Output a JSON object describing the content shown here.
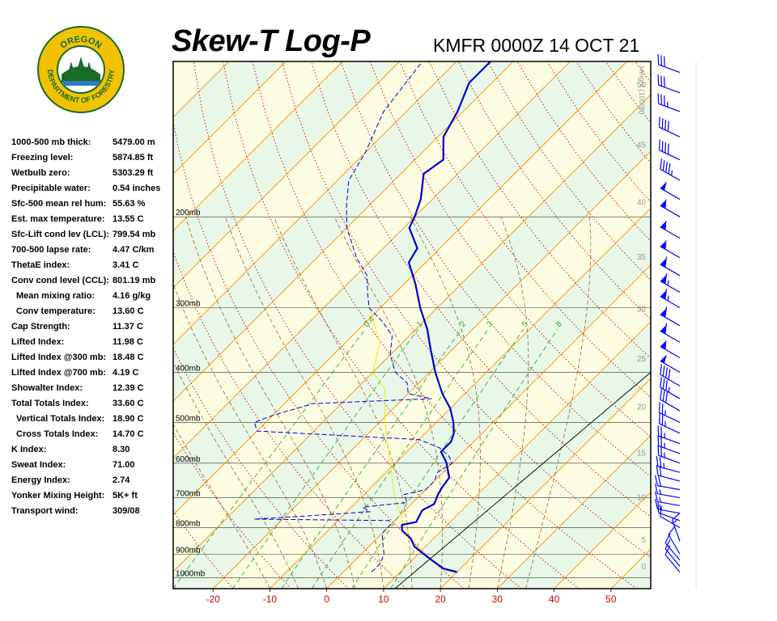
{
  "header": {
    "title": "Skew-T Log-P",
    "station_line": "KMFR 0000Z 14 OCT 21"
  },
  "logo": {
    "top_text": "OREGON",
    "bottom_text": "DEPARTMENT OF FORESTRY"
  },
  "indices": [
    {
      "label": "1000-500 mb thick:",
      "value": "5479.00 m"
    },
    {
      "label": "Freezing level:",
      "value": "5874.85 ft"
    },
    {
      "label": "Wetbulb zero:",
      "value": "5303.29 ft"
    },
    {
      "label": "Precipitable water:",
      "value": "0.54 inches"
    },
    {
      "label": "Sfc-500 mean rel hum:",
      "value": "55.63 %"
    },
    {
      "label": "Est. max temperature:",
      "value": "13.55 C"
    },
    {
      "label": "Sfc-Lift cond lev (LCL):",
      "value": "799.54 mb"
    },
    {
      "label": "700-500 lapse rate:",
      "value": "4.47 C/km"
    },
    {
      "label": "ThetaE index:",
      "value": "3.41 C"
    },
    {
      "label": "Conv cond level (CCL):",
      "value": "801.19 mb"
    },
    {
      "label": "Mean mixing ratio:",
      "value": "4.16 g/kg",
      "indent": true
    },
    {
      "label": "Conv temperature:",
      "value": "13.60 C",
      "indent": true
    },
    {
      "label": "Cap Strength:",
      "value": "11.37 C"
    },
    {
      "label": "Lifted Index:",
      "value": "11.98 C"
    },
    {
      "label": "Lifted Index @300 mb:",
      "value": "18.48 C"
    },
    {
      "label": "Lifted Index @700 mb:",
      "value": "4.19 C"
    },
    {
      "label": "Showalter Index:",
      "value": "12.39 C"
    },
    {
      "label": "Total Totals Index:",
      "value": "33.60 C"
    },
    {
      "label": "Vertical Totals Index:",
      "value": "18.90 C",
      "indent": true
    },
    {
      "label": "Cross Totals Index:",
      "value": "14.70 C",
      "indent": true
    },
    {
      "label": "K Index:",
      "value": "8.30"
    },
    {
      "label": "Sweat Index:",
      "value": "71.00"
    },
    {
      "label": "Energy Index:",
      "value": "2.74"
    },
    {
      "label": "Yonker Mixing Height:",
      "value": "5K+ ft"
    },
    {
      "label": "Transport wind:",
      "value": "309/08"
    }
  ],
  "colors": {
    "temperature": "#0000cc",
    "dewpoint": "#0000cc",
    "parcel": "#e6e600",
    "isotherm": "#ff8c00",
    "dry_adiabat": "#cc0000",
    "moist_adiabat": "#996633",
    "mixing_ratio": "#33aa33",
    "band_green": "#e8f7e8",
    "band_yellow": "#fcfce2",
    "x_tick_label": "#cc0000",
    "height_label": "#999999"
  },
  "chart_data": {
    "type": "line",
    "title": "Skew-T Log-P",
    "xlim": [
      -27,
      57
    ],
    "ylim": [
      1050,
      100
    ],
    "x_ticks": [
      -20,
      -10,
      0,
      10,
      20,
      30,
      40,
      50
    ],
    "pressure_levels": [
      200,
      300,
      400,
      500,
      600,
      700,
      800,
      900,
      1000
    ],
    "pressure_label_suffix": "mb",
    "height_axis_label": "Height (1000ft)",
    "height_ticks": [
      0,
      5,
      10,
      15,
      20,
      25,
      30,
      35,
      40,
      45,
      50
    ],
    "mixing_ratio_labels": [
      "0.4",
      "1",
      "2",
      "3",
      "5",
      "8"
    ],
    "mixing_ratio_values": [
      0.4,
      1,
      2,
      3,
      5,
      8
    ],
    "reference_line": [
      {
        "p": 1050,
        "t": 12
      },
      {
        "p": 260,
        "t": 22
      }
    ],
    "temperature": [
      {
        "p": 975,
        "t": 20
      },
      {
        "p": 960,
        "t": 17
      },
      {
        "p": 930,
        "t": 14
      },
      {
        "p": 900,
        "t": 11
      },
      {
        "p": 870,
        "t": 8
      },
      {
        "p": 840,
        "t": 6
      },
      {
        "p": 810,
        "t": 3
      },
      {
        "p": 790,
        "t": 2
      },
      {
        "p": 780,
        "t": 4
      },
      {
        "p": 740,
        "t": 3
      },
      {
        "p": 720,
        "t": 4
      },
      {
        "p": 690,
        "t": 3
      },
      {
        "p": 670,
        "t": 2.5
      },
      {
        "p": 640,
        "t": 2
      },
      {
        "p": 600,
        "t": -1
      },
      {
        "p": 570,
        "t": -4
      },
      {
        "p": 545,
        "t": -4
      },
      {
        "p": 525,
        "t": -5
      },
      {
        "p": 500,
        "t": -7
      },
      {
        "p": 470,
        "t": -10
      },
      {
        "p": 440,
        "t": -14
      },
      {
        "p": 400,
        "t": -19
      },
      {
        "p": 360,
        "t": -24
      },
      {
        "p": 330,
        "t": -28
      },
      {
        "p": 300,
        "t": -33
      },
      {
        "p": 270,
        "t": -38
      },
      {
        "p": 245,
        "t": -43
      },
      {
        "p": 230,
        "t": -44
      },
      {
        "p": 210,
        "t": -49
      },
      {
        "p": 200,
        "t": -50
      },
      {
        "p": 185,
        "t": -52
      },
      {
        "p": 165,
        "t": -56
      },
      {
        "p": 155,
        "t": -55
      },
      {
        "p": 140,
        "t": -59
      },
      {
        "p": 125,
        "t": -61
      },
      {
        "p": 110,
        "t": -64
      },
      {
        "p": 100,
        "t": -64
      }
    ],
    "dewpoint": [
      {
        "p": 975,
        "t": 5
      },
      {
        "p": 940,
        "t": 5
      },
      {
        "p": 900,
        "t": 4
      },
      {
        "p": 860,
        "t": 2
      },
      {
        "p": 820,
        "t": 0
      },
      {
        "p": 790,
        "t": 0
      },
      {
        "p": 775,
        "t": -1
      },
      {
        "p": 770,
        "t": -25
      },
      {
        "p": 760,
        "t": -17
      },
      {
        "p": 745,
        "t": -6
      },
      {
        "p": 730,
        "t": -8
      },
      {
        "p": 715,
        "t": -1
      },
      {
        "p": 690,
        "t": -3
      },
      {
        "p": 675,
        "t": 0
      },
      {
        "p": 650,
        "t": 0
      },
      {
        "p": 625,
        "t": -1
      },
      {
        "p": 600,
        "t": 0
      },
      {
        "p": 580,
        "t": -2
      },
      {
        "p": 560,
        "t": -5
      },
      {
        "p": 540,
        "t": -10
      },
      {
        "p": 520,
        "t": -40
      },
      {
        "p": 500,
        "t": -42
      },
      {
        "p": 485,
        "t": -40
      },
      {
        "p": 460,
        "t": -35
      },
      {
        "p": 450,
        "t": -15
      },
      {
        "p": 440,
        "t": -20
      },
      {
        "p": 420,
        "t": -22
      },
      {
        "p": 400,
        "t": -26
      },
      {
        "p": 370,
        "t": -30
      },
      {
        "p": 340,
        "t": -33
      },
      {
        "p": 320,
        "t": -37
      },
      {
        "p": 300,
        "t": -42
      },
      {
        "p": 280,
        "t": -45
      },
      {
        "p": 260,
        "t": -48
      },
      {
        "p": 240,
        "t": -53
      },
      {
        "p": 210,
        "t": -60
      },
      {
        "p": 190,
        "t": -64
      },
      {
        "p": 170,
        "t": -68
      },
      {
        "p": 150,
        "t": -70
      },
      {
        "p": 125,
        "t": -74
      },
      {
        "p": 100,
        "t": -76
      }
    ],
    "parcel": [
      {
        "p": 900,
        "t": 11
      },
      {
        "p": 840,
        "t": 6
      },
      {
        "p": 800,
        "t": 3
      },
      {
        "p": 770,
        "t": 1
      },
      {
        "p": 700,
        "t": -4
      },
      {
        "p": 600,
        "t": -11
      },
      {
        "p": 500,
        "t": -19
      },
      {
        "p": 430,
        "t": -25
      },
      {
        "p": 400,
        "t": -30
      },
      {
        "p": 350,
        "t": -34
      },
      {
        "p": 300,
        "t": -42
      }
    ],
    "winds": [
      {
        "p": 975,
        "dir": 320,
        "spd": 10
      },
      {
        "p": 950,
        "dir": 320,
        "spd": 10
      },
      {
        "p": 925,
        "dir": 320,
        "spd": 10
      },
      {
        "p": 900,
        "dir": 330,
        "spd": 10
      },
      {
        "p": 850,
        "dir": 340,
        "spd": 15
      },
      {
        "p": 800,
        "dir": 300,
        "spd": 10
      },
      {
        "p": 775,
        "dir": 290,
        "spd": 10
      },
      {
        "p": 750,
        "dir": 280,
        "spd": 15
      },
      {
        "p": 725,
        "dir": 280,
        "spd": 15
      },
      {
        "p": 700,
        "dir": 280,
        "spd": 15
      },
      {
        "p": 675,
        "dir": 280,
        "spd": 20
      },
      {
        "p": 650,
        "dir": 285,
        "spd": 20
      },
      {
        "p": 625,
        "dir": 285,
        "spd": 25
      },
      {
        "p": 600,
        "dir": 290,
        "spd": 25
      },
      {
        "p": 575,
        "dir": 290,
        "spd": 25
      },
      {
        "p": 550,
        "dir": 290,
        "spd": 25
      },
      {
        "p": 525,
        "dir": 295,
        "spd": 25
      },
      {
        "p": 500,
        "dir": 295,
        "spd": 25
      },
      {
        "p": 475,
        "dir": 300,
        "spd": 30
      },
      {
        "p": 450,
        "dir": 300,
        "spd": 35
      },
      {
        "p": 425,
        "dir": 300,
        "spd": 40
      },
      {
        "p": 400,
        "dir": 300,
        "spd": 50
      },
      {
        "p": 375,
        "dir": 300,
        "spd": 55
      },
      {
        "p": 350,
        "dir": 300,
        "spd": 60
      },
      {
        "p": 325,
        "dir": 300,
        "spd": 60
      },
      {
        "p": 300,
        "dir": 300,
        "spd": 65
      },
      {
        "p": 280,
        "dir": 300,
        "spd": 65
      },
      {
        "p": 260,
        "dir": 300,
        "spd": 60
      },
      {
        "p": 240,
        "dir": 300,
        "spd": 55
      },
      {
        "p": 220,
        "dir": 300,
        "spd": 55
      },
      {
        "p": 200,
        "dir": 300,
        "spd": 55
      },
      {
        "p": 185,
        "dir": 300,
        "spd": 50
      },
      {
        "p": 170,
        "dir": 300,
        "spd": 45
      },
      {
        "p": 155,
        "dir": 295,
        "spd": 40
      },
      {
        "p": 140,
        "dir": 295,
        "spd": 40
      },
      {
        "p": 125,
        "dir": 290,
        "spd": 35
      },
      {
        "p": 115,
        "dir": 290,
        "spd": 30
      },
      {
        "p": 105,
        "dir": 290,
        "spd": 30
      }
    ]
  }
}
